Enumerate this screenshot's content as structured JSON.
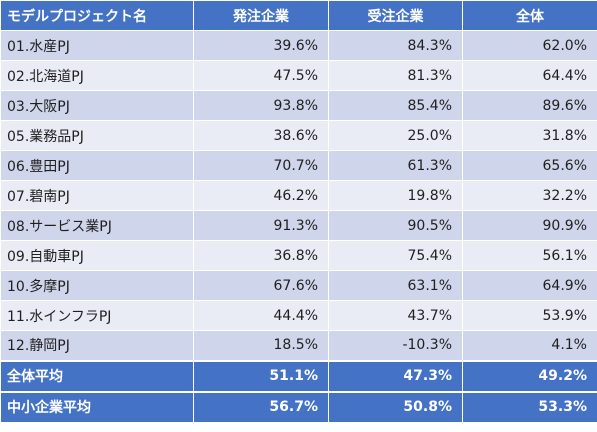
{
  "headers": [
    "モデルプロジェクト名",
    "発注企業",
    "受注企業",
    "全体"
  ],
  "rows": [
    {
      "name": "01.水産PJ",
      "order": "39.6%",
      "receive": "84.3%",
      "total": "62.0%"
    },
    {
      "name": "02.北海道PJ",
      "order": "47.5%",
      "receive": "81.3%",
      "total": "64.4%"
    },
    {
      "name": "03.大阪PJ",
      "order": "93.8%",
      "receive": "85.4%",
      "total": "89.6%"
    },
    {
      "name": "05.業務品PJ",
      "order": "38.6%",
      "receive": "25.0%",
      "total": "31.8%"
    },
    {
      "name": "06.豊田PJ",
      "order": "70.7%",
      "receive": "61.3%",
      "total": "65.6%"
    },
    {
      "name": "07.碧南PJ",
      "order": "46.2%",
      "receive": "19.8%",
      "total": "32.2%"
    },
    {
      "name": "08.サービス業PJ",
      "order": "91.3%",
      "receive": "90.5%",
      "total": "90.9%"
    },
    {
      "name": "09.自動車PJ",
      "order": "36.8%",
      "receive": "75.4%",
      "total": "56.1%"
    },
    {
      "name": "10.多摩PJ",
      "order": "67.6%",
      "receive": "63.1%",
      "total": "64.9%"
    },
    {
      "name": "11.水インフラPJ",
      "order": "44.4%",
      "receive": "43.7%",
      "total": "53.9%"
    },
    {
      "name": "12.静岡PJ",
      "order": "18.5%",
      "receive": "-10.3%",
      "total": "4.1%"
    }
  ],
  "summary": [
    {
      "name": "全体平均",
      "order": "51.1%",
      "receive": "47.3%",
      "total": "49.2%"
    },
    {
      "name": "中小企業平均",
      "order": "56.7%",
      "receive": "50.8%",
      "total": "53.3%"
    }
  ],
  "colors": {
    "header_bg": "#4472c4",
    "row_odd": "#cfd5ea",
    "row_even": "#e9ebf5"
  }
}
